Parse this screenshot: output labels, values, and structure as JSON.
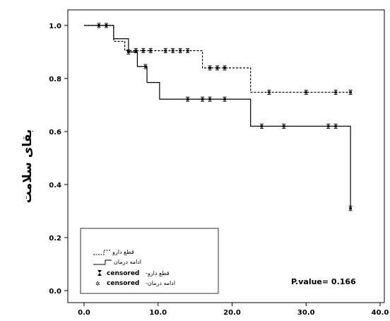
{
  "chart_data": {
    "type": "line",
    "chart_kind": "kaplan-meier survival curve",
    "title": "",
    "xlabel": "",
    "ylabel": "بقای سلامت",
    "xlim": [
      0,
      40
    ],
    "ylim": [
      0,
      1
    ],
    "x_ticks": [
      "0.0",
      "10.0",
      "20.0",
      "30.0",
      "40.0"
    ],
    "y_ticks": [
      "0.0",
      "0.2",
      "0.4",
      "0.6",
      "0.8",
      "1.0"
    ],
    "grid": false,
    "legend_position": "bottom-left",
    "legend": {
      "series_1": "قطع دارو",
      "series_2": "ادامه درمان",
      "censored_1_prefix": "censored",
      "censored_1_suffix": "-قطع دارو",
      "censored_2_prefix": "censored",
      "censored_2_suffix": "-ادامه درمان"
    },
    "annotation": "P.value= 0.166",
    "series": [
      {
        "name": "قطع دارو",
        "style": "dashed",
        "color": "#000000",
        "steps": [
          [
            0,
            1.0
          ],
          [
            4,
            0.94
          ],
          [
            5.5,
            0.905
          ],
          [
            16,
            0.84
          ],
          [
            22.5,
            0.748
          ],
          [
            36,
            0.748
          ]
        ],
        "censored": [
          2,
          3,
          7,
          8,
          9,
          11,
          12,
          13,
          14,
          17,
          18,
          19,
          25,
          30,
          34,
          36
        ]
      },
      {
        "name": "ادامه درمان",
        "style": "solid",
        "color": "#000000",
        "steps": [
          [
            0,
            1.0
          ],
          [
            3.5,
            1.0
          ],
          [
            4,
            0.95
          ],
          [
            6,
            0.9
          ],
          [
            7.2,
            0.845
          ],
          [
            8.5,
            0.785
          ],
          [
            10.2,
            0.722
          ],
          [
            22.5,
            0.62
          ],
          [
            36,
            0.31
          ]
        ],
        "censored": [
          2,
          3,
          6,
          8.3,
          14,
          16,
          17,
          19,
          24,
          27,
          33,
          34,
          36
        ]
      }
    ]
  }
}
